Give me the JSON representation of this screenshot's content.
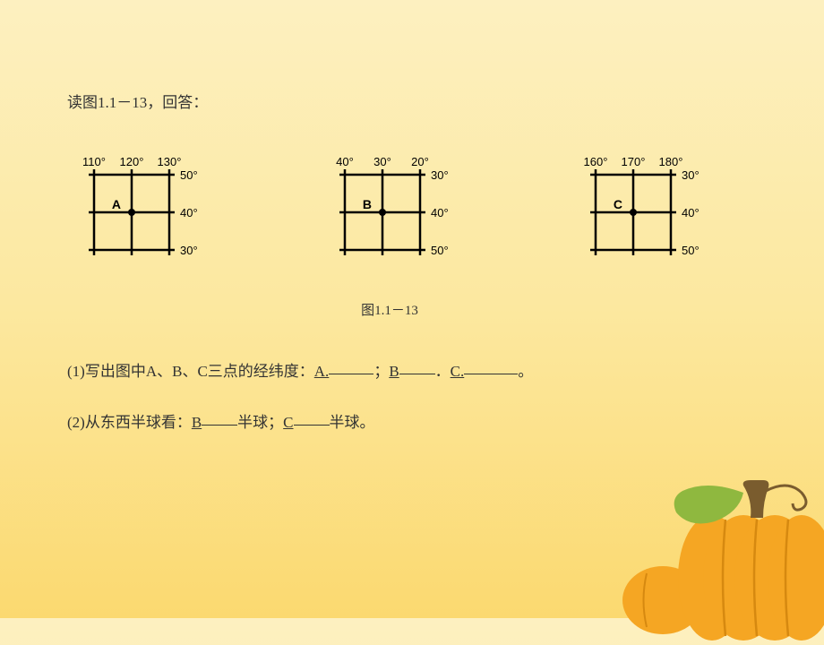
{
  "title": "读图1.1－13，回答：",
  "caption": "图1.1－13",
  "diagrams": {
    "grid_size": 140,
    "cell_size": 42,
    "label_fontsize": 13,
    "line_color": "#000000",
    "line_width": 2.5,
    "point_radius": 4,
    "A": {
      "top_labels": [
        "110°",
        "120°",
        "130°"
      ],
      "right_labels": [
        "50°",
        "40°",
        "30°"
      ],
      "point_label": "A",
      "point_col": 1,
      "point_row": 1
    },
    "B": {
      "top_labels": [
        "40°",
        "30°",
        "20°"
      ],
      "right_labels": [
        "30°",
        "40°",
        "50°"
      ],
      "point_label": "B",
      "point_col": 1,
      "point_row": 1
    },
    "C": {
      "top_labels": [
        "160°",
        "170°",
        "180°"
      ],
      "right_labels": [
        "30°",
        "40°",
        "50°"
      ],
      "point_label": "C",
      "point_col": 1,
      "point_row": 1
    }
  },
  "questions": {
    "q1_prefix": "(1)写出图中A、B、C三点的经纬度：",
    "q1_a": "A.",
    "q1_sep1": "；",
    "q1_b": "B",
    "q1_sep2": "．",
    "q1_c": "C.",
    "q1_end": "。",
    "q2_prefix": "(2)从东西半球看：",
    "q2_b": "B",
    "q2_mid1": "半球；",
    "q2_c": "C",
    "q2_mid2": "半球。"
  },
  "pumpkin": {
    "body_color": "#f5a623",
    "body_shadow": "#d68910",
    "stem_color": "#7a5c2e",
    "leaf_color": "#8fb83f"
  }
}
